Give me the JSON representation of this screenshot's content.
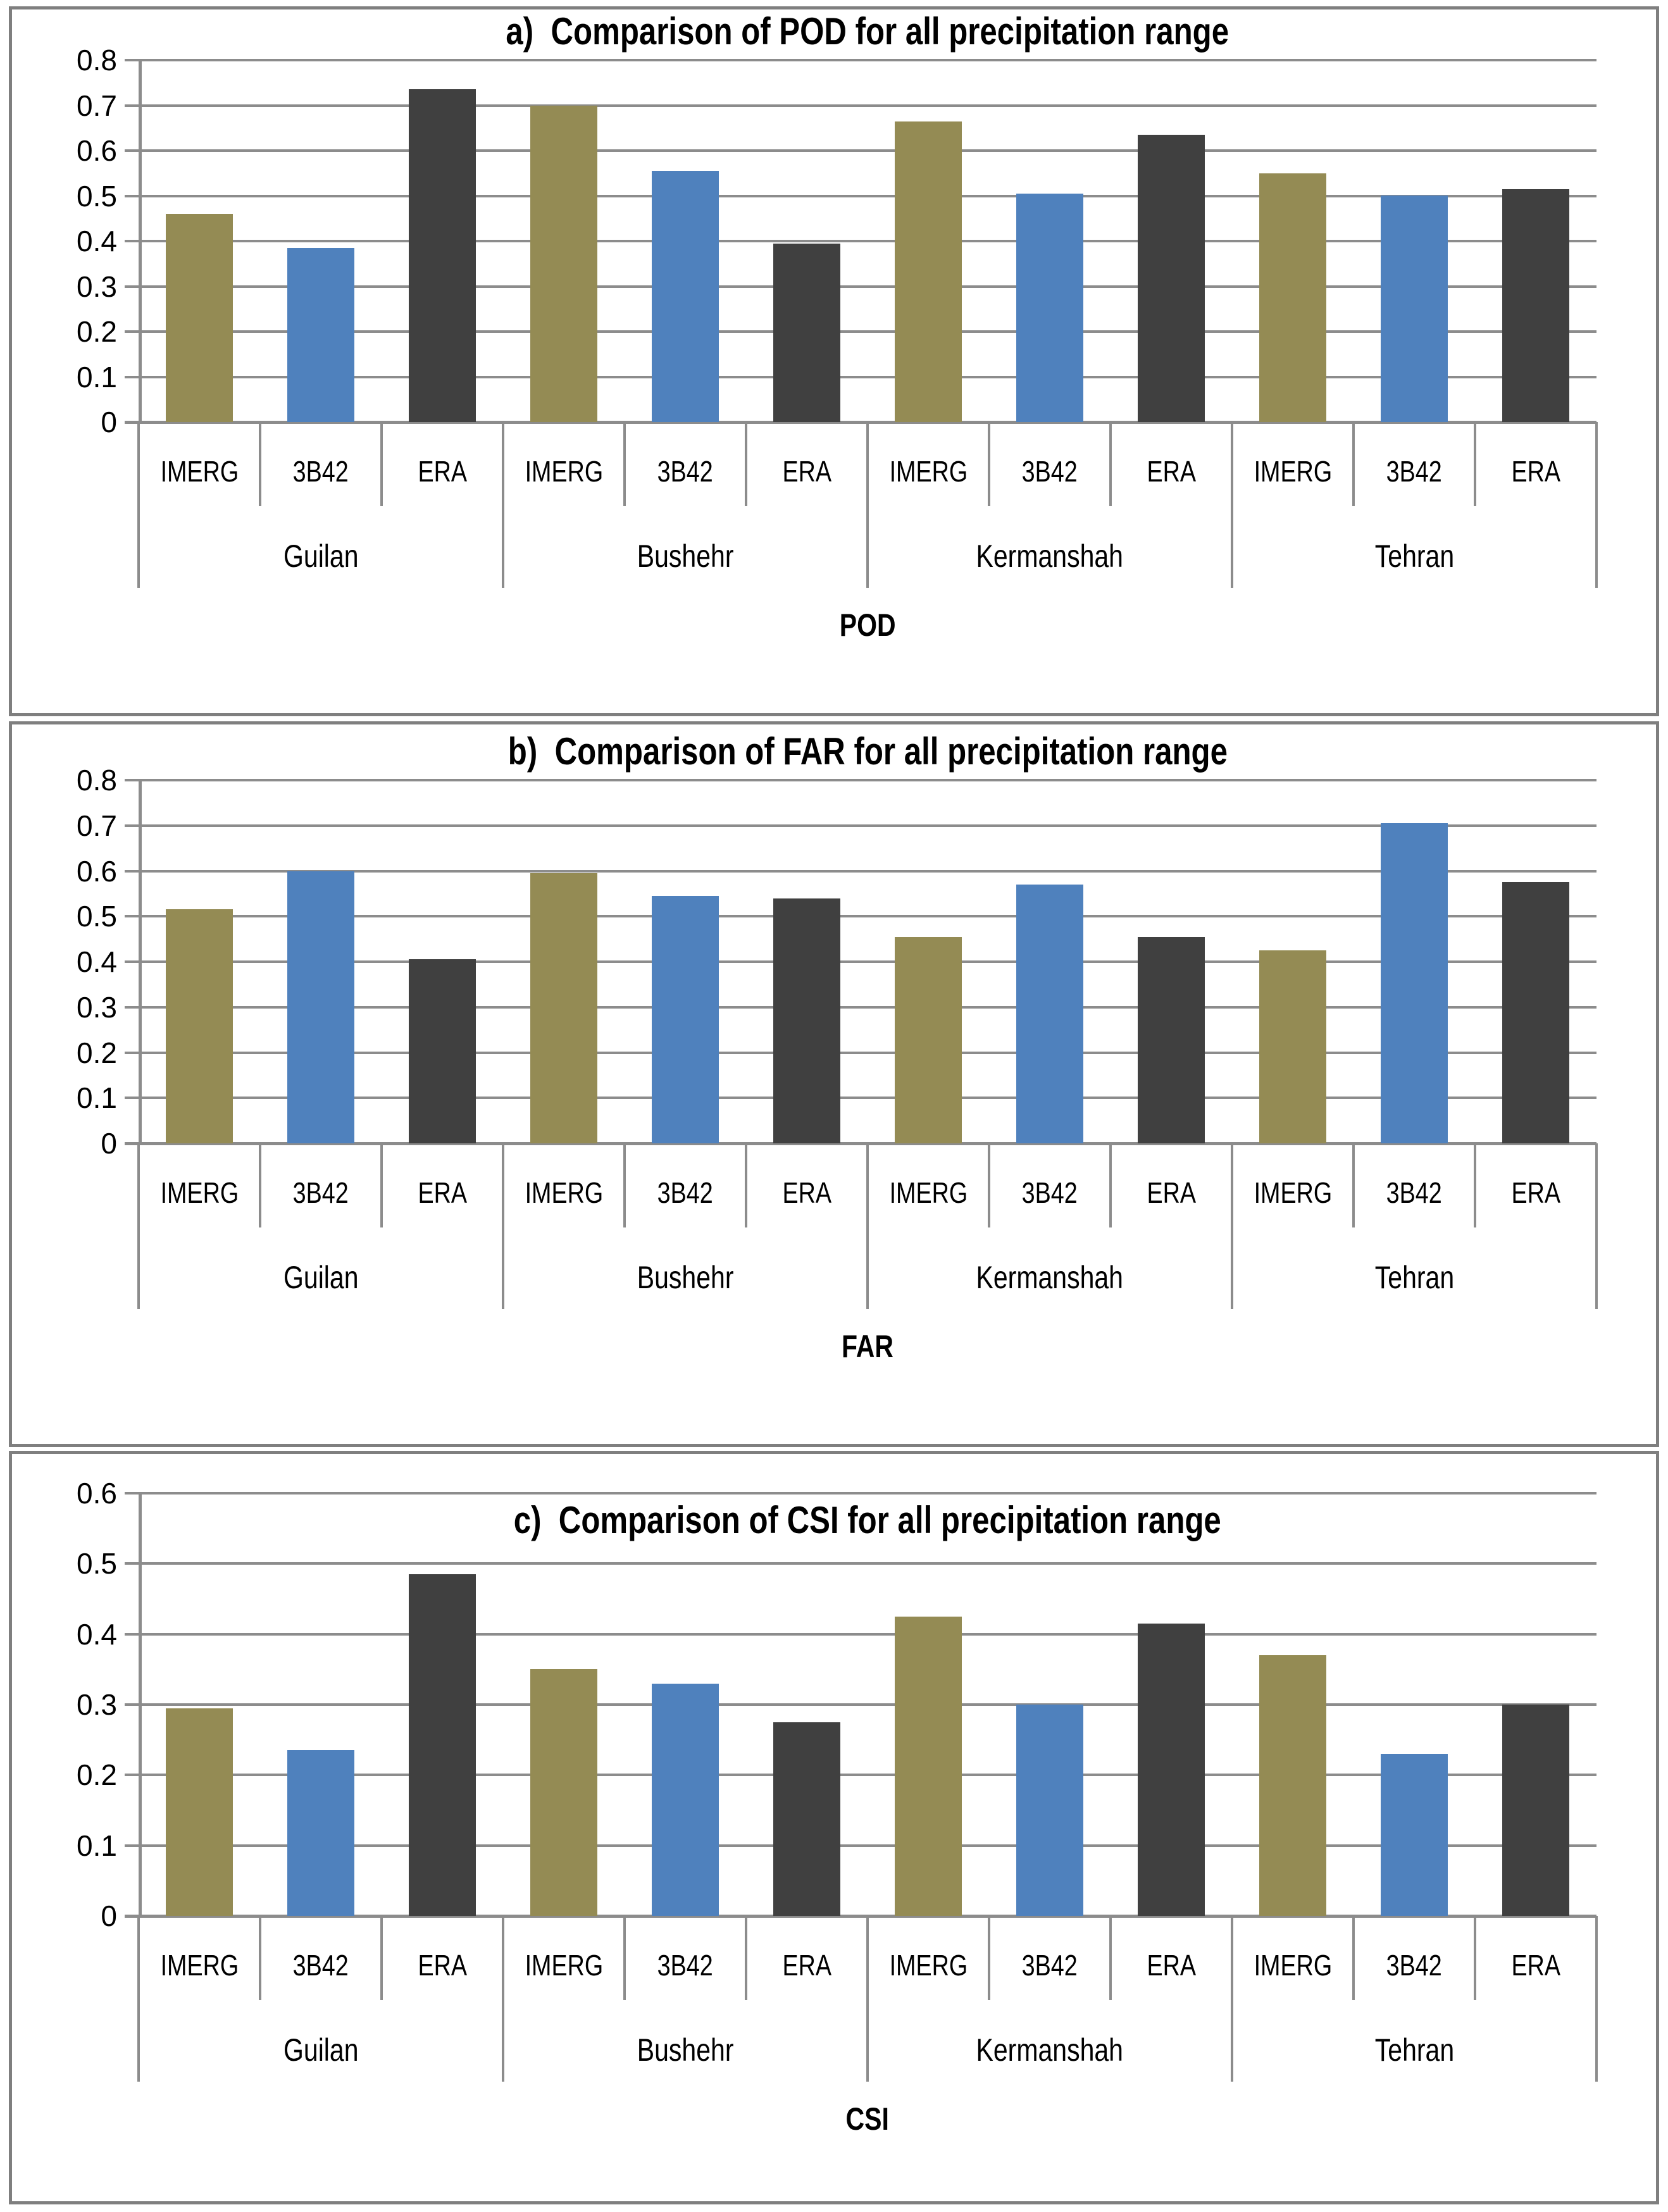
{
  "figure": {
    "description": "Three stacked bar chart panels comparing precipitation detection skill scores",
    "panel_count": 3
  },
  "style": {
    "series_colors": {
      "IMERG": "#948B54",
      "3B42": "#4F81BD",
      "ERA": "#404040"
    },
    "grid_color": "#8C8C8C",
    "panel_border_color": "#7F7F7F",
    "text_color": "#000000",
    "background": "#FFFFFF"
  },
  "chart_data": [
    {
      "type": "bar",
      "panel_letter": "a)",
      "title": "a)  Comparison of POD for all precipitation range",
      "axis_title": "POD",
      "ylim": [
        0,
        0.8
      ],
      "ytick_step": 0.1,
      "ytick_labels": [
        "0.8",
        "0.7",
        "0.6",
        "0.5",
        "0.4",
        "0.3",
        "0.2",
        "0.1",
        "0"
      ],
      "grid": true,
      "legend_position": "none",
      "categories": [
        "Guilan",
        "Bushehr",
        "Kermanshah",
        "Tehran"
      ],
      "series_labels": [
        "IMERG",
        "3B42",
        "ERA"
      ],
      "groups": [
        {
          "name": "Guilan",
          "values": [
            0.46,
            0.385,
            0.735
          ]
        },
        {
          "name": "Bushehr",
          "values": [
            0.7,
            0.555,
            0.395
          ]
        },
        {
          "name": "Kermanshah",
          "values": [
            0.665,
            0.505,
            0.635
          ]
        },
        {
          "name": "Tehran",
          "values": [
            0.55,
            0.5,
            0.515
          ]
        }
      ]
    },
    {
      "type": "bar",
      "panel_letter": "b)",
      "title": "b)  Comparison of FAR for all precipitation range",
      "axis_title": "FAR",
      "ylim": [
        0,
        0.8
      ],
      "ytick_step": 0.1,
      "ytick_labels": [
        "0.8",
        "0.7",
        "0.6",
        "0.5",
        "0.4",
        "0.3",
        "0.2",
        "0.1",
        "0"
      ],
      "grid": true,
      "legend_position": "none",
      "categories": [
        "Guilan",
        "Bushehr",
        "Kermanshah",
        "Tehran"
      ],
      "series_labels": [
        "IMERG",
        "3B42",
        "ERA"
      ],
      "groups": [
        {
          "name": "Guilan",
          "values": [
            0.515,
            0.6,
            0.405
          ]
        },
        {
          "name": "Bushehr",
          "values": [
            0.595,
            0.545,
            0.54
          ]
        },
        {
          "name": "Kermanshah",
          "values": [
            0.455,
            0.57,
            0.455
          ]
        },
        {
          "name": "Tehran",
          "values": [
            0.425,
            0.705,
            0.575
          ]
        }
      ]
    },
    {
      "type": "bar",
      "panel_letter": "c)",
      "title": "c)  Comparison of CSI for all precipitation range",
      "axis_title": "CSI",
      "ylim": [
        0,
        0.6
      ],
      "ytick_step": 0.1,
      "ytick_labels": [
        "0.6",
        "0.5",
        "0.4",
        "0.3",
        "0.2",
        "0.1",
        "0"
      ],
      "grid": true,
      "legend_position": "none",
      "categories": [
        "Guilan",
        "Bushehr",
        "Kermanshah",
        "Tehran"
      ],
      "series_labels": [
        "IMERG",
        "3B42",
        "ERA"
      ],
      "groups": [
        {
          "name": "Guilan",
          "values": [
            0.295,
            0.235,
            0.485
          ]
        },
        {
          "name": "Bushehr",
          "values": [
            0.35,
            0.33,
            0.275
          ]
        },
        {
          "name": "Kermanshah",
          "values": [
            0.425,
            0.3,
            0.415
          ]
        },
        {
          "name": "Tehran",
          "values": [
            0.37,
            0.23,
            0.3
          ]
        }
      ]
    }
  ]
}
